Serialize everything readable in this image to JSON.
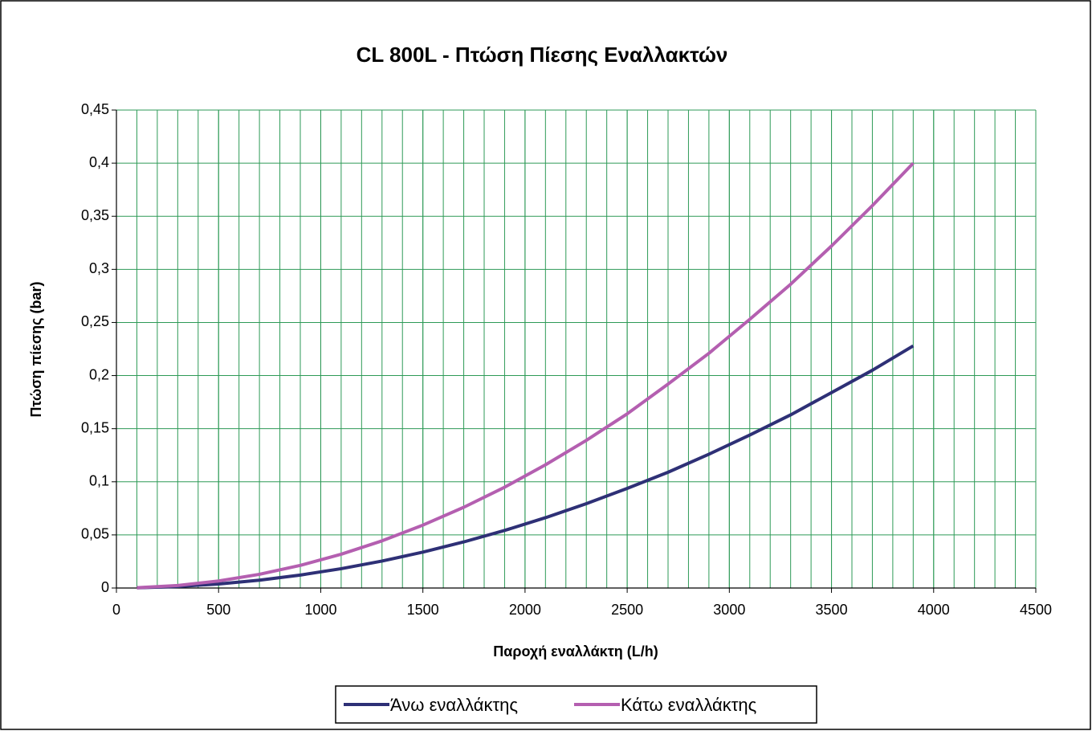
{
  "chart_data": {
    "type": "line",
    "title": "CL 800L - Πτώση Πίεσης Εναλλακτών",
    "x_label": "Παροχή εναλλάκτη (L/h)",
    "y_label": "Πτώση πίεσης (bar)",
    "x": [
      100,
      300,
      500,
      700,
      900,
      1100,
      1300,
      1500,
      1700,
      1900,
      2100,
      2300,
      2500,
      2700,
      2900,
      3100,
      3300,
      3500,
      3700,
      3900
    ],
    "series": [
      {
        "name": "Άνω εναλλάκτης",
        "color": "#2e3076",
        "values": [
          0.0002,
          0.0014,
          0.0038,
          0.0074,
          0.0122,
          0.0182,
          0.0254,
          0.0338,
          0.0434,
          0.0542,
          0.0662,
          0.0794,
          0.0938,
          0.109,
          0.126,
          0.144,
          0.163,
          0.184,
          0.205,
          0.228
        ]
      },
      {
        "name": "Κάτω εναλλάκτης",
        "color": "#b45fb0",
        "values": [
          0.0003,
          0.0024,
          0.0066,
          0.0129,
          0.0213,
          0.0318,
          0.0444,
          0.0592,
          0.076,
          0.0949,
          0.116,
          0.139,
          0.164,
          0.192,
          0.221,
          0.253,
          0.286,
          0.322,
          0.36,
          0.4
        ]
      }
    ],
    "xlim": [
      0,
      4500
    ],
    "xticks": [
      0,
      500,
      1000,
      1500,
      2000,
      2500,
      3000,
      3500,
      4000,
      4500
    ],
    "x_minor_grid_step": 100,
    "ylim": [
      0,
      0.45
    ],
    "yticks": [
      0,
      {
        "value": 0.05,
        "label": "0,05"
      },
      {
        "value": 0.1,
        "label": "0,1"
      },
      {
        "value": 0.15,
        "label": "0,15"
      },
      {
        "value": 0.2,
        "label": "0,2"
      },
      {
        "value": 0.25,
        "label": "0,25"
      },
      {
        "value": 0.3,
        "label": "0,3"
      },
      {
        "value": 0.35,
        "label": "0,35"
      },
      {
        "value": 0.4,
        "label": "0,4"
      },
      {
        "value": 0.45,
        "label": "0,45"
      }
    ],
    "grid": true,
    "grid_color": "#2e9a57",
    "legend": "bottom"
  }
}
